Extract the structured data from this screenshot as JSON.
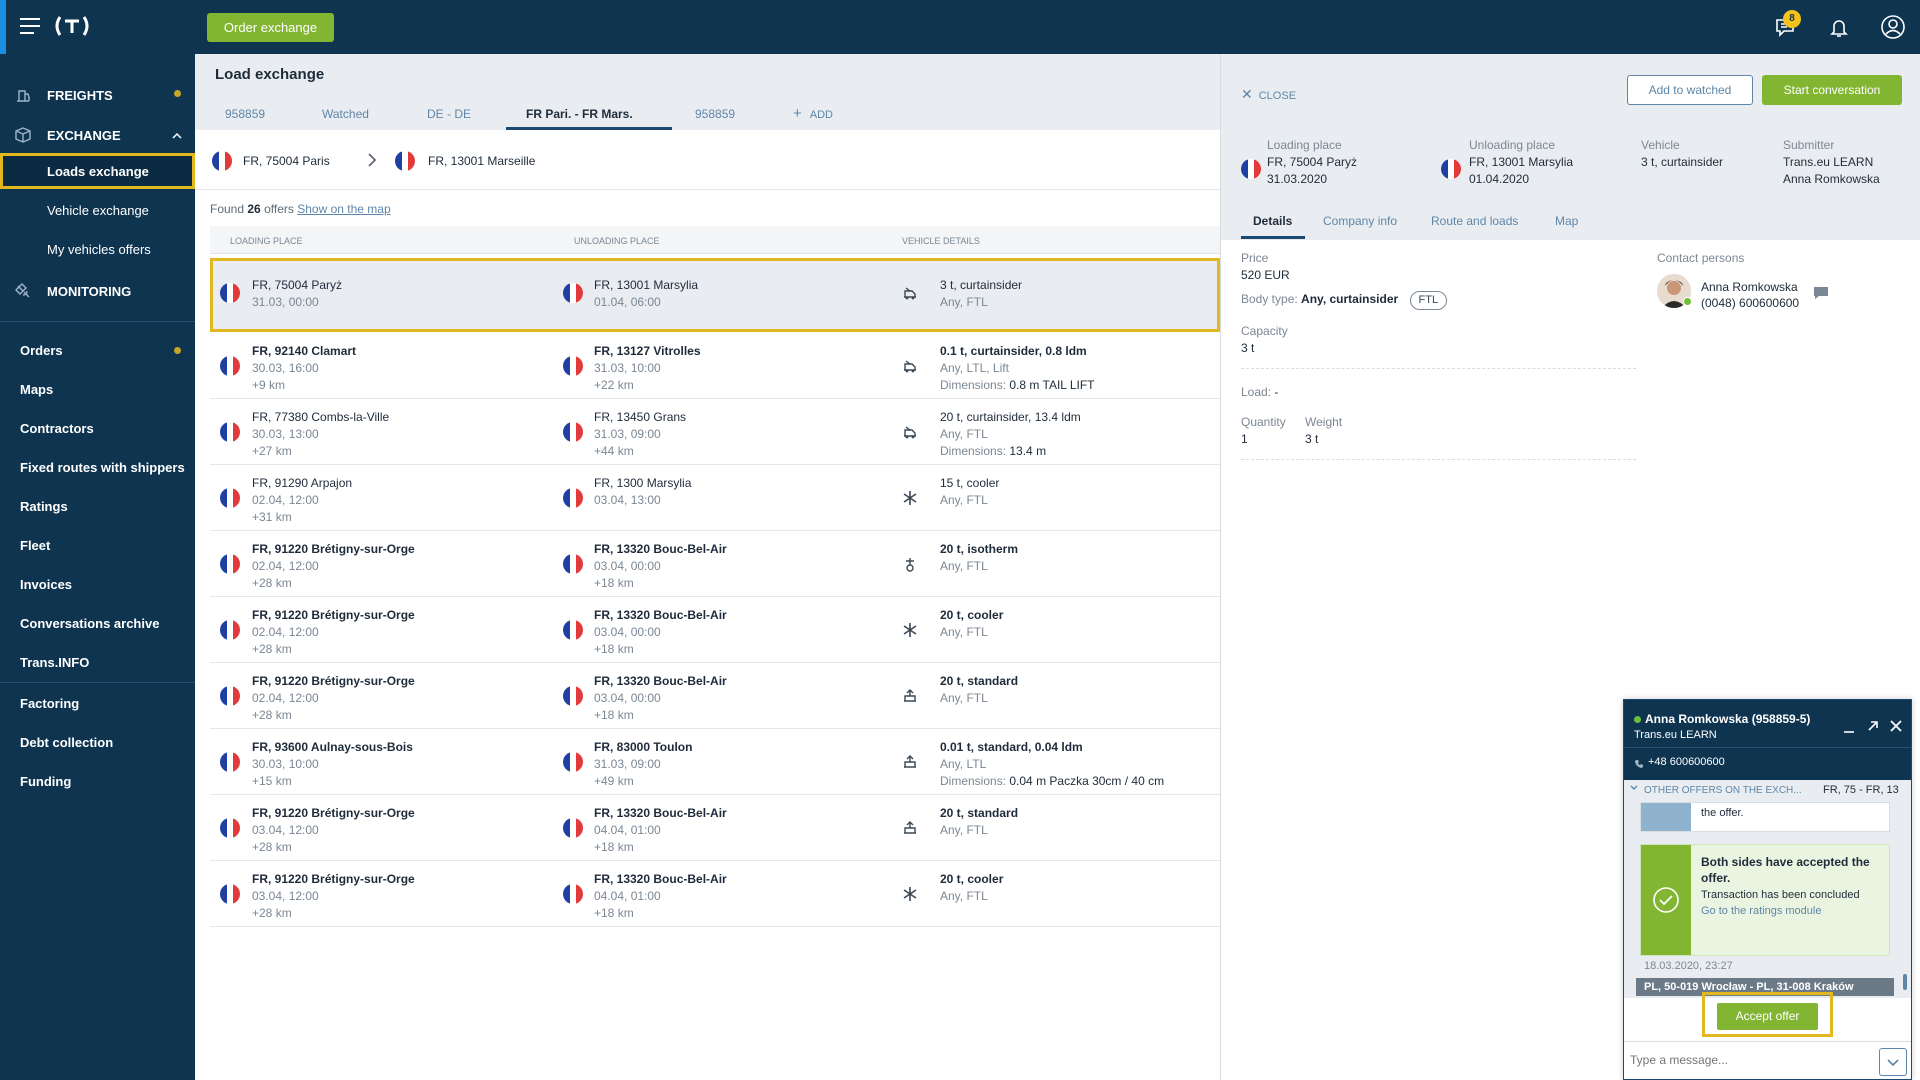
{
  "topbar": {
    "order_exchange_label": "Order exchange",
    "notifications_badge": "8"
  },
  "sidebar": {
    "freights": "FREIGHTS",
    "exchange": "EXCHANGE",
    "loads_exchange": "Loads exchange",
    "vehicle_exchange": "Vehicle exchange",
    "my_vehicles_offers": "My vehicles offers",
    "monitoring": "MONITORING",
    "items": [
      "Orders",
      "Maps",
      "Contractors",
      "Fixed routes with shippers",
      "Ratings",
      "Fleet",
      "Invoices",
      "Conversations archive",
      "Trans.INFO",
      "Factoring",
      "Debt collection",
      "Funding"
    ]
  },
  "main": {
    "title": "Load exchange",
    "tabs": [
      "958859",
      "Watched",
      "DE - DE",
      "FR Pari. - FR Mars.",
      "958859",
      "ADD"
    ],
    "route_from": "FR, 75004 Paris",
    "route_to": "FR, 13001 Marseille",
    "found_prefix": "Found",
    "found_count": "26",
    "found_suffix": "offers",
    "show_on_map": "Show on the map",
    "columns": [
      "LOADING PLACE",
      "UNLOADING PLACE",
      "VEHICLE DETAILS"
    ],
    "rows": [
      {
        "load": "FR, 75004 Paryż",
        "load_time": "31.03, 00:00",
        "load_km": "",
        "unload": "FR, 13001 Marsylia",
        "unload_time": "01.04, 06:00",
        "unload_km": "",
        "vehicle": "3 t, curtainsider",
        "vtype": "Any, FTL",
        "dim_label": "",
        "dim_val": "",
        "bold": false,
        "icon": "curtainsider-icon"
      },
      {
        "load": "FR, 92140 Clamart",
        "load_time": "30.03, 16:00",
        "load_km": "+9 km",
        "unload": "FR, 13127 Vitrolles",
        "unload_time": "31.03, 10:00",
        "unload_km": "+22 km",
        "vehicle": "0.1 t, curtainsider, 0.8 ldm",
        "vtype": "Any, LTL, Lift",
        "dim_label": "Dimensions:",
        "dim_val": "0.8 m TAIL LIFT",
        "bold": true,
        "icon": "curtainsider-icon"
      },
      {
        "load": "FR, 77380 Combs-la-Ville",
        "load_time": "30.03, 13:00",
        "load_km": "+27 km",
        "unload": "FR, 13450 Grans",
        "unload_time": "31.03, 09:00",
        "unload_km": "+44 km",
        "vehicle": "20 t, curtainsider, 13.4 ldm",
        "vtype": "Any, FTL",
        "dim_label": "Dimensions:",
        "dim_val": "13.4 m",
        "bold": false,
        "icon": "curtainsider-icon"
      },
      {
        "load": "FR, 91290 Arpajon",
        "load_time": "02.04, 12:00",
        "load_km": "+31 km",
        "unload": "FR, 1300 Marsylia",
        "unload_time": "03.04, 13:00",
        "unload_km": "",
        "vehicle": "15 t, cooler",
        "vtype": "Any, FTL",
        "dim_label": "",
        "dim_val": "",
        "bold": false,
        "icon": "cooler-icon"
      },
      {
        "load": "FR, 91220 Brétigny-sur-Orge",
        "load_time": "02.04, 12:00",
        "load_km": "+28 km",
        "unload": "FR, 13320 Bouc-Bel-Air",
        "unload_time": "03.04, 00:00",
        "unload_km": "+18 km",
        "vehicle": "20 t, isotherm",
        "vtype": "Any, FTL",
        "dim_label": "",
        "dim_val": "",
        "bold": true,
        "icon": "isotherm-icon"
      },
      {
        "load": "FR, 91220 Brétigny-sur-Orge",
        "load_time": "02.04, 12:00",
        "load_km": "+28 km",
        "unload": "FR, 13320 Bouc-Bel-Air",
        "unload_time": "03.04, 00:00",
        "unload_km": "+18 km",
        "vehicle": "20 t, cooler",
        "vtype": "Any, FTL",
        "dim_label": "",
        "dim_val": "",
        "bold": true,
        "icon": "cooler-icon"
      },
      {
        "load": "FR, 91220 Brétigny-sur-Orge",
        "load_time": "02.04, 12:00",
        "load_km": "+28 km",
        "unload": "FR, 13320 Bouc-Bel-Air",
        "unload_time": "03.04, 00:00",
        "unload_km": "+18 km",
        "vehicle": "20 t, standard",
        "vtype": "Any, FTL",
        "dim_label": "",
        "dim_val": "",
        "bold": true,
        "icon": "standard-truck-icon"
      },
      {
        "load": "FR, 93600 Aulnay-sous-Bois",
        "load_time": "30.03, 10:00",
        "load_km": "+15 km",
        "unload": "FR, 83000 Toulon",
        "unload_time": "31.03, 09:00",
        "unload_km": "+49 km",
        "vehicle": "0.01 t, standard, 0.04 ldm",
        "vtype": "Any, LTL",
        "dim_label": "Dimensions:",
        "dim_val": "0.04 m Paczka 30cm / 40 cm",
        "bold": true,
        "icon": "standard-truck-icon"
      },
      {
        "load": "FR, 91220 Brétigny-sur-Orge",
        "load_time": "03.04, 12:00",
        "load_km": "+28 km",
        "unload": "FR, 13320 Bouc-Bel-Air",
        "unload_time": "04.04, 01:00",
        "unload_km": "+18 km",
        "vehicle": "20 t, standard",
        "vtype": "Any, FTL",
        "dim_label": "",
        "dim_val": "",
        "bold": true,
        "icon": "standard-truck-icon"
      },
      {
        "load": "FR, 91220 Brétigny-sur-Orge",
        "load_time": "03.04, 12:00",
        "load_km": "+28 km",
        "unload": "FR, 13320 Bouc-Bel-Air",
        "unload_time": "04.04, 01:00",
        "unload_km": "+18 km",
        "vehicle": "20 t, cooler",
        "vtype": "Any, FTL",
        "dim_label": "",
        "dim_val": "",
        "bold": true,
        "icon": "cooler-icon"
      }
    ]
  },
  "detail": {
    "close": "CLOSE",
    "add_to_watched": "Add to watched",
    "start_conversation": "Start conversation",
    "loading_label": "Loading place",
    "loading_place": "FR, 75004 Paryż",
    "loading_date": "31.03.2020",
    "unloading_label": "Unloading place",
    "unloading_place": "FR, 13001 Marsylia",
    "unloading_date": "01.04.2020",
    "vehicle_label": "Vehicle",
    "vehicle": "3 t, curtainsider",
    "submitter_label": "Submitter",
    "submitter_company": "Trans.eu LEARN",
    "submitter_name": "Anna Romkowska",
    "tabs": [
      "Details",
      "Company info",
      "Route and loads",
      "Map"
    ],
    "price_label": "Price",
    "price": "520 EUR",
    "body_type_label": "Body type:",
    "body_type": "Any, curtainsider",
    "ftl": "FTL",
    "capacity_label": "Capacity",
    "capacity": "3 t",
    "load_label": "Load:",
    "load_value": "-",
    "quantity_label": "Quantity",
    "quantity": "1",
    "weight_label": "Weight",
    "weight": "3 t",
    "contact_label": "Contact persons",
    "contact_name": "Anna Romkowska",
    "contact_phone": "(0048) 600600600"
  },
  "chat": {
    "title": "Anna Romkowska (958859-5)",
    "company": "Trans.eu LEARN",
    "phone": "+48 600600600",
    "other_offers": "OTHER OFFERS ON THE EXCH...",
    "other_route": "FR, 75 - FR, 13",
    "prev_text": "the offer.",
    "accepted_title": "Both sides have accepted the offer.",
    "accepted_text": "Transaction has been concluded",
    "ratings_link": "Go to the ratings module",
    "timestamp": "18.03.2020, 23:27",
    "route_footer": "PL, 50-019 Wrocław - PL, 31-008 Kraków",
    "accept_offer": "Accept offer",
    "message_placeholder": "Type a message..."
  },
  "colors": {
    "brand_dark": "#0e3450",
    "accent_green": "#82b532",
    "highlight": "#e2b81e",
    "link": "#5f86a8"
  }
}
